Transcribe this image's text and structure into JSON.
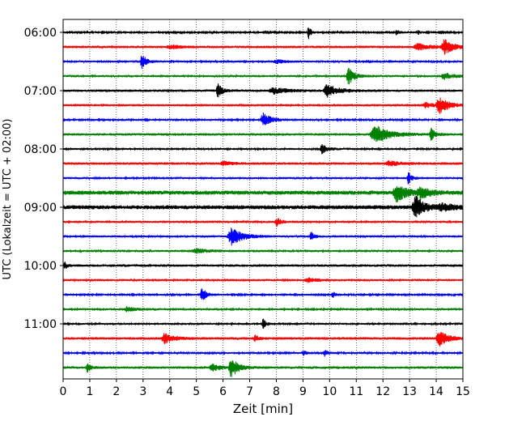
{
  "chart_data": {
    "type": "line",
    "title": "",
    "xlabel": "Zeit  [min]",
    "ylabel": "UTC (Lokalzeit = UTC + 02:00)",
    "xlim": [
      0,
      15
    ],
    "x_ticks": [
      0,
      1,
      2,
      3,
      4,
      5,
      6,
      7,
      8,
      9,
      10,
      11,
      12,
      13,
      14,
      15
    ],
    "x_tick_labels": [
      "0",
      "1",
      "2",
      "3",
      "4",
      "5",
      "6",
      "7",
      "8",
      "9",
      "10",
      "11",
      "12",
      "13",
      "14",
      "15"
    ],
    "y_tick_labels": [
      "06:00",
      "07:00",
      "08:00",
      "09:00",
      "10:00",
      "11:00"
    ],
    "y_tick_rows": [
      0,
      4,
      8,
      12,
      16,
      20
    ],
    "grid": "vertical dotted lines at each minute",
    "legend": "none",
    "row_interval_minutes": 15,
    "trace_colors": [
      "#000000",
      "#ff0000",
      "#0000ff",
      "#008000"
    ],
    "series": [
      {
        "start": "06:00",
        "color": "#000000",
        "noise": 1.0,
        "events": [
          {
            "t": 9.2,
            "amp": 9,
            "width": 0.1
          },
          {
            "t": 12.5,
            "amp": 3,
            "width": 0.15
          },
          {
            "t": 13.3,
            "amp": 3,
            "width": 0.1
          }
        ]
      },
      {
        "start": "06:15",
        "color": "#ff0000",
        "noise": 1.5,
        "events": [
          {
            "t": 4.0,
            "amp": 2.5,
            "width": 0.3
          },
          {
            "t": 13.3,
            "amp": 4,
            "width": 0.4
          },
          {
            "t": 14.3,
            "amp": 9,
            "width": 0.3
          }
        ]
      },
      {
        "start": "06:30",
        "color": "#0000ff",
        "noise": 1.2,
        "events": [
          {
            "t": 2.95,
            "amp": 10,
            "width": 0.15
          },
          {
            "t": 8.0,
            "amp": 2.5,
            "width": 0.3
          }
        ]
      },
      {
        "start": "06:45",
        "color": "#008000",
        "noise": 1.3,
        "events": [
          {
            "t": 10.7,
            "amp": 12,
            "width": 0.2
          },
          {
            "t": 14.3,
            "amp": 3.5,
            "width": 0.4
          }
        ]
      },
      {
        "start": "07:00",
        "color": "#000000",
        "noise": 1.5,
        "events": [
          {
            "t": 5.8,
            "amp": 9,
            "width": 0.15
          },
          {
            "t": 7.9,
            "amp": 3.5,
            "width": 0.5
          },
          {
            "t": 9.9,
            "amp": 8,
            "width": 0.4
          }
        ]
      },
      {
        "start": "07:15",
        "color": "#ff0000",
        "noise": 1.4,
        "events": [
          {
            "t": 13.6,
            "amp": 3,
            "width": 0.3
          },
          {
            "t": 14.1,
            "amp": 11,
            "width": 0.3
          }
        ]
      },
      {
        "start": "07:30",
        "color": "#0000ff",
        "noise": 1.1,
        "events": [
          {
            "t": 7.5,
            "amp": 9,
            "width": 0.3
          }
        ]
      },
      {
        "start": "07:45",
        "color": "#008000",
        "noise": 1.5,
        "events": [
          {
            "t": 11.7,
            "amp": 11,
            "width": 0.5
          },
          {
            "t": 13.8,
            "amp": 8,
            "width": 0.15
          }
        ]
      },
      {
        "start": "08:00",
        "color": "#000000",
        "noise": 1.2,
        "events": [
          {
            "t": 9.7,
            "amp": 6,
            "width": 0.2
          }
        ]
      },
      {
        "start": "08:15",
        "color": "#ff0000",
        "noise": 1.5,
        "events": [
          {
            "t": 6.0,
            "amp": 2.5,
            "width": 0.3
          },
          {
            "t": 12.2,
            "amp": 3,
            "width": 0.4
          }
        ]
      },
      {
        "start": "08:30",
        "color": "#0000ff",
        "noise": 1.3,
        "events": [
          {
            "t": 12.95,
            "amp": 8,
            "width": 0.12
          }
        ]
      },
      {
        "start": "08:45",
        "color": "#008000",
        "noise": 2.5,
        "events": [
          {
            "t": 12.5,
            "amp": 11,
            "width": 0.35
          },
          {
            "t": 13.4,
            "amp": 6,
            "width": 0.35
          }
        ]
      },
      {
        "start": "09:00",
        "color": "#000000",
        "noise": 2.5,
        "events": [
          {
            "t": 13.2,
            "amp": 14,
            "width": 0.3
          },
          {
            "t": 14.2,
            "amp": 4,
            "width": 0.4
          }
        ]
      },
      {
        "start": "09:15",
        "color": "#ff0000",
        "noise": 1.3,
        "events": [
          {
            "t": 8.0,
            "amp": 6,
            "width": 0.15
          }
        ]
      },
      {
        "start": "09:30",
        "color": "#0000ff",
        "noise": 1.3,
        "events": [
          {
            "t": 6.3,
            "amp": 11,
            "width": 0.4
          },
          {
            "t": 9.3,
            "amp": 6,
            "width": 0.12
          }
        ]
      },
      {
        "start": "09:45",
        "color": "#008000",
        "noise": 1.3,
        "events": [
          {
            "t": 5.0,
            "amp": 2.5,
            "width": 0.5
          }
        ]
      },
      {
        "start": "10:00",
        "color": "#000000",
        "noise": 1.5,
        "events": [
          {
            "t": 0.05,
            "amp": 5,
            "width": 0.08
          }
        ]
      },
      {
        "start": "10:15",
        "color": "#ff0000",
        "noise": 1.3,
        "events": [
          {
            "t": 9.2,
            "amp": 2.5,
            "width": 0.4
          }
        ]
      },
      {
        "start": "10:30",
        "color": "#0000ff",
        "noise": 1.1,
        "events": [
          {
            "t": 5.2,
            "amp": 10,
            "width": 0.15
          },
          {
            "t": 10.1,
            "amp": 4.5,
            "width": 0.1
          }
        ]
      },
      {
        "start": "10:45",
        "color": "#008000",
        "noise": 1.2,
        "events": [
          {
            "t": 2.4,
            "amp": 3,
            "width": 0.3
          }
        ]
      },
      {
        "start": "11:00",
        "color": "#000000",
        "noise": 1.2,
        "events": [
          {
            "t": 7.5,
            "amp": 6,
            "width": 0.12
          }
        ]
      },
      {
        "start": "11:15",
        "color": "#ff0000",
        "noise": 1.6,
        "events": [
          {
            "t": 3.8,
            "amp": 6,
            "width": 0.3
          },
          {
            "t": 7.2,
            "amp": 3.5,
            "width": 0.15
          },
          {
            "t": 14.1,
            "amp": 10,
            "width": 0.3
          }
        ]
      },
      {
        "start": "11:30",
        "color": "#0000ff",
        "noise": 1.1,
        "events": [
          {
            "t": 9.0,
            "amp": 3,
            "width": 0.15
          },
          {
            "t": 9.8,
            "amp": 4,
            "width": 0.12
          }
        ]
      },
      {
        "start": "11:45",
        "color": "#008000",
        "noise": 1.5,
        "events": [
          {
            "t": 0.9,
            "amp": 6,
            "width": 0.12
          },
          {
            "t": 5.6,
            "amp": 4,
            "width": 0.3
          },
          {
            "t": 6.3,
            "amp": 12,
            "width": 0.25
          }
        ]
      }
    ]
  }
}
